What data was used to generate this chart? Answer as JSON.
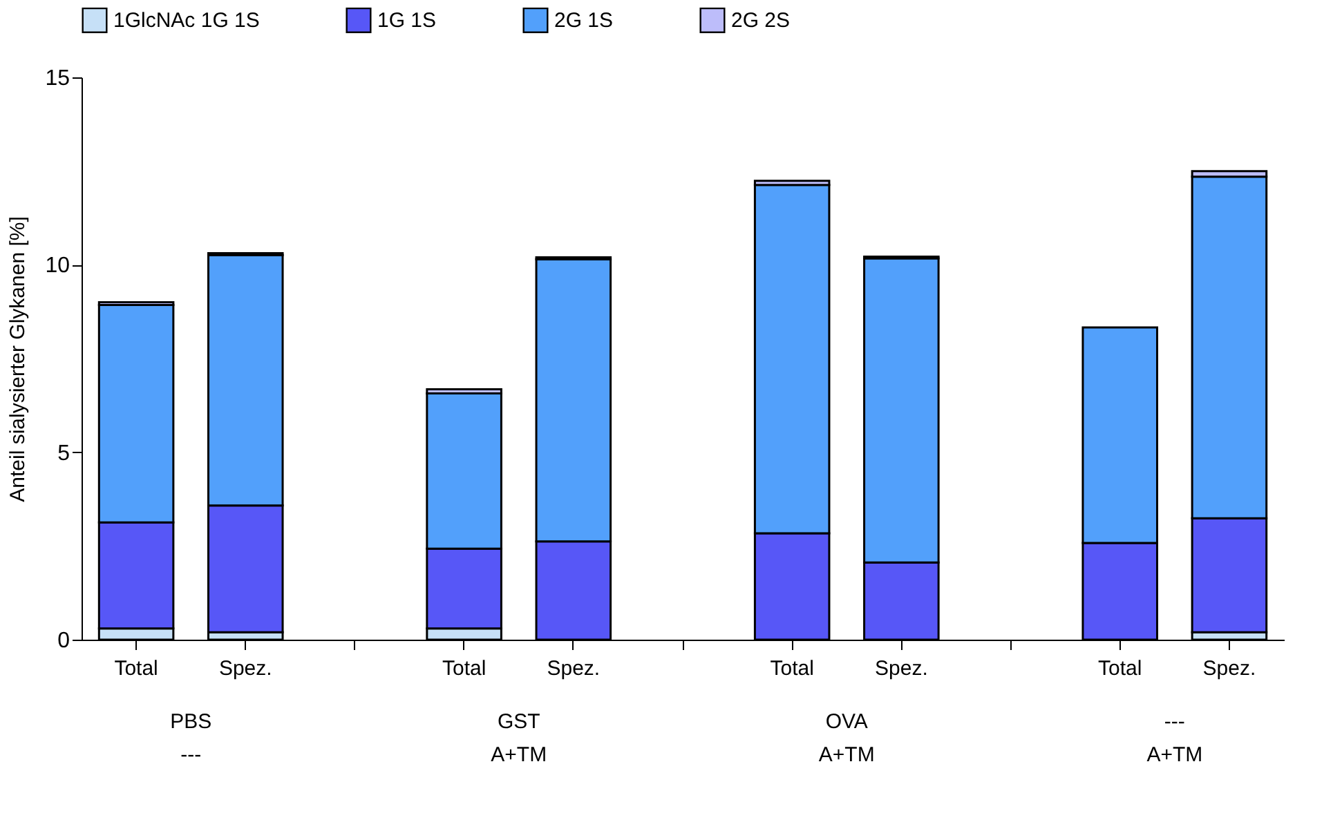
{
  "chart_data": {
    "type": "bar",
    "stacked": true,
    "ylabel": "Anteil sialysierter Glykanen [%]",
    "categories": [
      "Total",
      "Spez.",
      null,
      "Total",
      "Spez.",
      null,
      "Total",
      "Spez.",
      null,
      "Total",
      "Spez."
    ],
    "series": [
      {
        "name": "1GlcNAc 1G 1S",
        "color": "#c6e0f7",
        "values": [
          0.3,
          0.2,
          null,
          0.3,
          0,
          null,
          0,
          0,
          null,
          0,
          0.2
        ]
      },
      {
        "name": "1G 1S",
        "color": "#5757f7",
        "values": [
          2.83,
          3.38,
          null,
          2.13,
          2.62,
          null,
          2.84,
          2.06,
          null,
          2.58,
          3.04
        ]
      },
      {
        "name": "2G 1S",
        "color": "#52a0fb",
        "values": [
          5.8,
          6.68,
          null,
          4.14,
          7.53,
          null,
          9.29,
          8.11,
          null,
          5.75,
          9.11
        ]
      },
      {
        "name": "2G 2S",
        "color": "#bdbdfa",
        "values": [
          0.07,
          0.05,
          null,
          0.11,
          0.05,
          null,
          0.11,
          0.05,
          null,
          0,
          0.15
        ]
      }
    ],
    "ylim": [
      0,
      15
    ],
    "yticks": [
      0,
      5,
      10,
      15
    ],
    "grid": false,
    "legend": "top",
    "annotations": [
      "PBS\n---",
      "GST\nA+TM",
      "OVA\nA+TM",
      "---\nA+TM"
    ]
  }
}
